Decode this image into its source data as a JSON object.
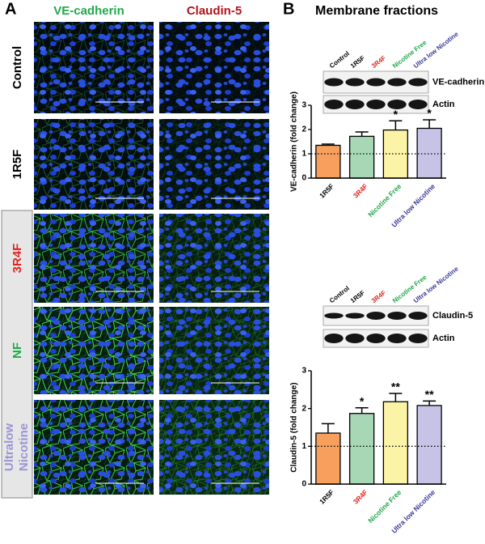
{
  "panel_a": {
    "label": "A",
    "columns": [
      "VE-cadherin",
      "Claudin-5"
    ],
    "rows": [
      [
        "Control"
      ],
      [
        "1R5F"
      ],
      [
        "3R4F"
      ],
      [
        "NF"
      ],
      [
        "Ultralow",
        "Nicotine"
      ]
    ]
  },
  "panel_b": {
    "label": "B",
    "title": "Membrane fractions",
    "blots": [
      {
        "lanes": [
          "Control",
          "1R5F",
          "3R4F",
          "Nicotine Free",
          "Ultra low Nicotine"
        ],
        "bands": [
          "VE-cadherin",
          "Actin"
        ]
      },
      {
        "lanes": [
          "Control",
          "1R5F",
          "3R4F",
          "Nicotine Free",
          "Ultra low Nicotine"
        ],
        "bands": [
          "Claudin-5",
          "Actin"
        ]
      }
    ]
  },
  "chart_data": [
    {
      "type": "bar",
      "ylabel": "VE-cadherin (fold change)",
      "categories": [
        "1R5F",
        "3R4F",
        "Nicotine Free",
        "Ultra low Nicotine"
      ],
      "values": [
        1.35,
        1.72,
        1.98,
        2.05
      ],
      "errors": [
        0.05,
        0.18,
        0.38,
        0.35
      ],
      "annotations": [
        null,
        null,
        "*",
        "*"
      ],
      "colors": [
        "#f7a05e",
        "#a7d7b4",
        "#fbf3a6",
        "#c7c3e6"
      ],
      "label_colors": [
        "#000000",
        "#e0231c",
        "#1faa4a",
        "#3a3a9a"
      ],
      "reference_line": 1,
      "ylim": [
        0,
        3
      ],
      "yticks": [
        0,
        1,
        2,
        3
      ]
    },
    {
      "type": "bar",
      "ylabel": "Claudin-5 (fold change)",
      "categories": [
        "1R5F",
        "3R4F",
        "Nicotine Free",
        "Ultra low Nicotine"
      ],
      "values": [
        1.35,
        1.87,
        2.18,
        2.08
      ],
      "errors": [
        0.25,
        0.15,
        0.22,
        0.12
      ],
      "annotations": [
        null,
        "*",
        "**",
        "**"
      ],
      "colors": [
        "#f7a05e",
        "#a7d7b4",
        "#fbf3a6",
        "#c7c3e6"
      ],
      "label_colors": [
        "#000000",
        "#e0231c",
        "#1faa4a",
        "#3a3a9a"
      ],
      "reference_line": 1,
      "ylim": [
        0,
        3
      ],
      "yticks": [
        0,
        1,
        2,
        3
      ]
    }
  ]
}
